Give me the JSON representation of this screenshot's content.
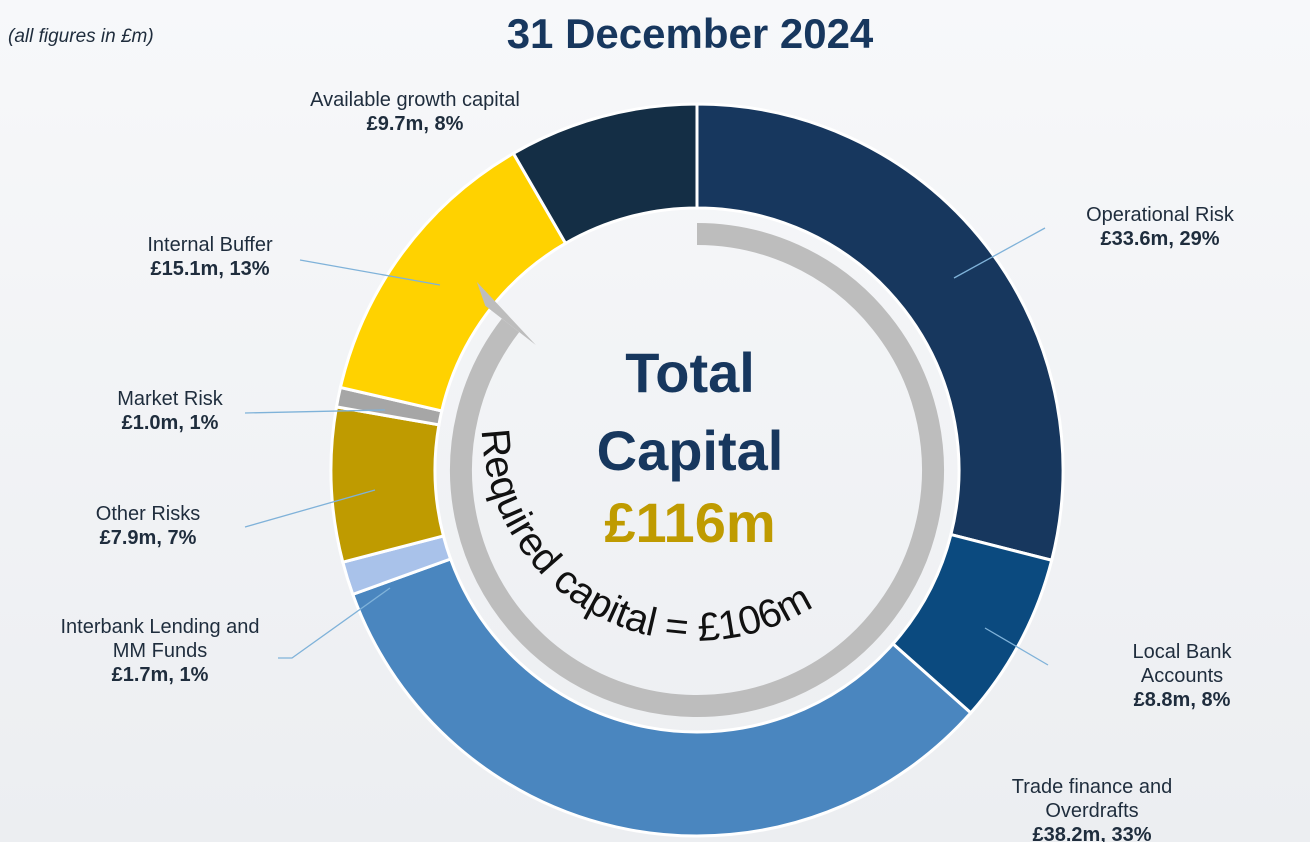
{
  "chart_data": {
    "type": "donut",
    "title": "31 December 2024",
    "note": "(all figures in £m)",
    "center_lines": [
      "Total",
      "Capital"
    ],
    "center_value": "£116m",
    "ring_caption": "Required capital = £106m",
    "categories": [
      "Operational Risk",
      "Local Bank Accounts",
      "Trade finance and Overdrafts",
      "Interbank Lending and MM Funds",
      "Other Risks",
      "Market Risk",
      "Internal Buffer",
      "Available growth capital"
    ],
    "values": [
      33.6,
      8.8,
      38.2,
      1.7,
      7.9,
      1.0,
      15.1,
      9.7
    ],
    "value_labels": [
      "£33.6m, 29%",
      "£8.8m, 8%",
      "£38.2m, 33%",
      "£1.7m, 1%",
      "£7.9m, 7%",
      "£1.0m, 1%",
      "£15.1m, 13%",
      "£9.7m, 8%"
    ],
    "colors": [
      "#17375e",
      "#0b4a7f",
      "#4a86bf",
      "#a9c2ea",
      "#bf9b00",
      "#a6a6a6",
      "#ffd200",
      "#142e45"
    ]
  }
}
